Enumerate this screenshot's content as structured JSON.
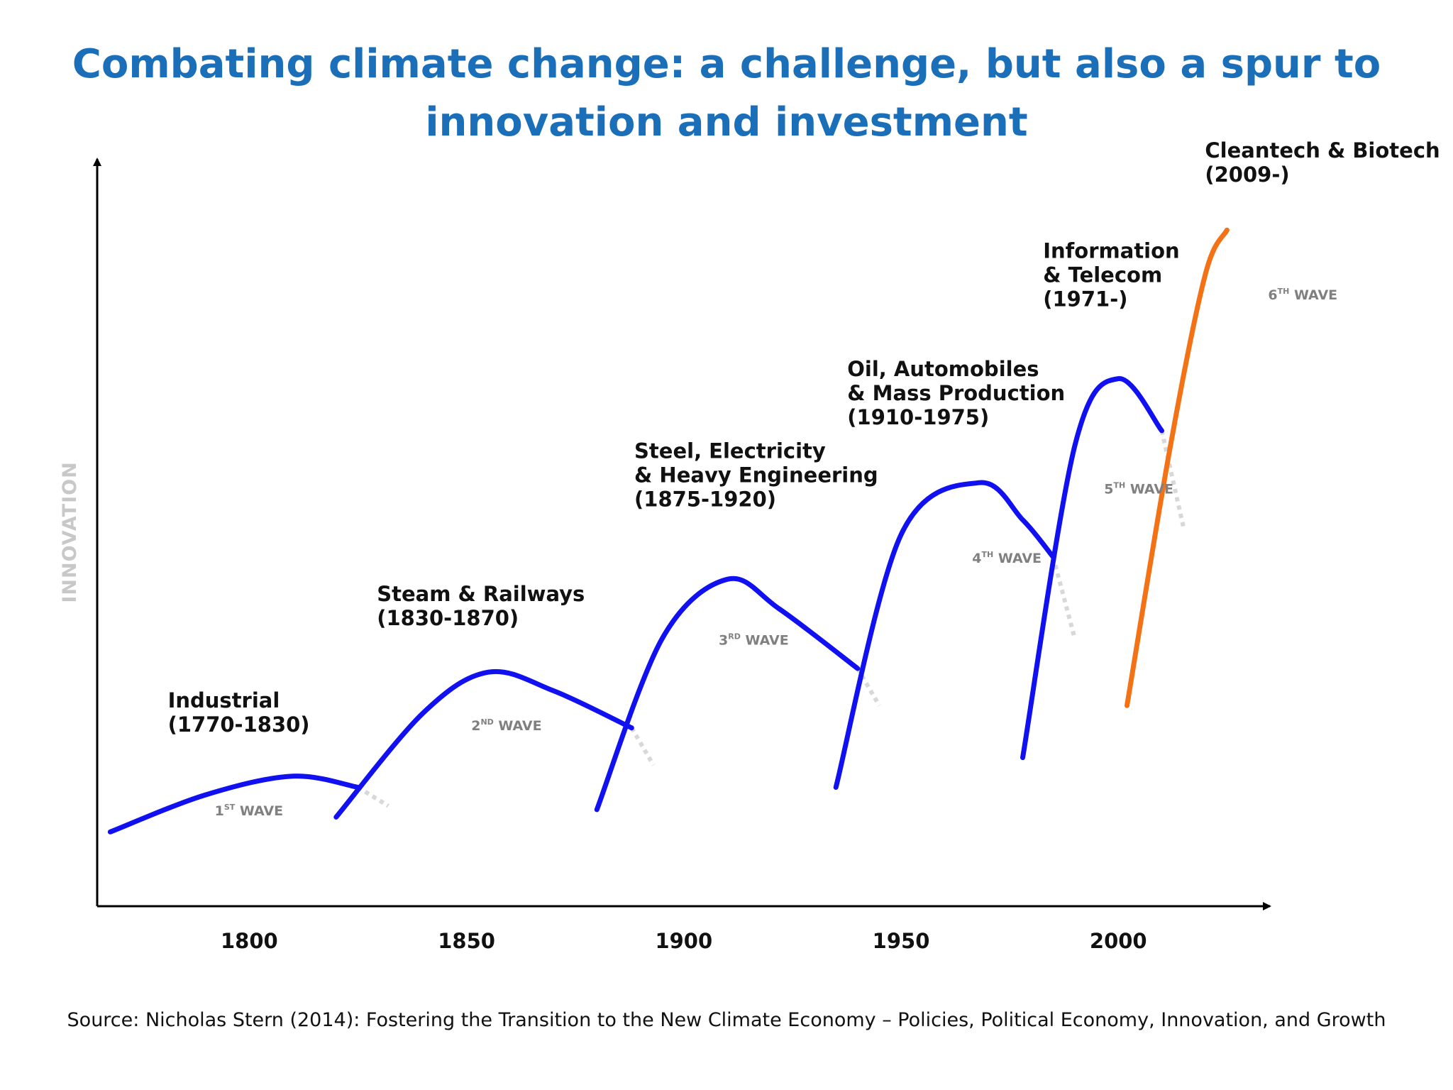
{
  "title": {
    "line1": "Combating climate change: a challenge, but also a spur to",
    "line2": "innovation and investment"
  },
  "source": "Source: Nicholas Stern (2014): Fostering the Transition to the New Climate Economy – Policies, Political Economy, Innovation, and Growth",
  "colors": {
    "title": "#1b6fb8",
    "wave": "#1010f0",
    "sixth_wave": "#f47216",
    "fade": "#d8d8d8",
    "axis": "#000000"
  },
  "chart_data": {
    "type": "line",
    "title": "",
    "ylabel": "INNOVATION",
    "xlabel": "",
    "xlim": [
      1765,
      2030
    ],
    "ylim": [
      0,
      100
    ],
    "xticks": [
      1800,
      1850,
      1900,
      1950,
      2000
    ],
    "grid": false,
    "legend": "none",
    "series": [
      {
        "name": "Industrial",
        "period": "(1770-1830)",
        "wave": "1",
        "wave_suffix": "ST",
        "color": "#1010f0",
        "points": [
          [
            1768,
            10
          ],
          [
            1790,
            15
          ],
          [
            1810,
            17.5
          ],
          [
            1825,
            16
          ]
        ],
        "fade": [
          [
            1825,
            16
          ],
          [
            1832,
            13.5
          ]
        ]
      },
      {
        "name": "Steam & Railways",
        "period": "(1830-1870)",
        "wave": "2",
        "wave_suffix": "ND",
        "color": "#1010f0",
        "points": [
          [
            1820,
            12
          ],
          [
            1840,
            26
          ],
          [
            1855,
            31.5
          ],
          [
            1870,
            29
          ],
          [
            1888,
            24
          ]
        ],
        "fade": [
          [
            1888,
            24
          ],
          [
            1893,
            19
          ]
        ]
      },
      {
        "name": "Steel, Electricity & Heavy Engineering",
        "period": "(1875-1920)",
        "wave": "3",
        "wave_suffix": "RD",
        "color": "#1010f0",
        "points": [
          [
            1880,
            13
          ],
          [
            1895,
            36
          ],
          [
            1910,
            44
          ],
          [
            1922,
            40
          ],
          [
            1940,
            32
          ]
        ],
        "fade": [
          [
            1940,
            32
          ],
          [
            1945,
            27
          ]
        ]
      },
      {
        "name": "Oil, Automobiles & Mass Production",
        "period": "(1910-1975)",
        "wave": "4",
        "wave_suffix": "TH",
        "color": "#1010f0",
        "points": [
          [
            1935,
            16
          ],
          [
            1950,
            50
          ],
          [
            1968,
            57
          ],
          [
            1978,
            52
          ],
          [
            1985,
            47
          ]
        ],
        "fade": [
          [
            1985,
            47
          ],
          [
            1990,
            36
          ]
        ]
      },
      {
        "name": "Information & Telecom",
        "period": "(1971-)",
        "wave": "5",
        "wave_suffix": "TH",
        "color": "#1010f0",
        "points": [
          [
            1978,
            20
          ],
          [
            1990,
            62
          ],
          [
            2000,
            71
          ],
          [
            2010,
            64
          ]
        ],
        "fade": [
          [
            2010,
            64
          ],
          [
            2015,
            51
          ]
        ]
      },
      {
        "name": "Cleantech & Biotech",
        "period": "(2009-)",
        "wave": "6",
        "wave_suffix": "TH",
        "color": "#f47216",
        "points": [
          [
            2002,
            27
          ],
          [
            2012,
            62
          ],
          [
            2020,
            85
          ],
          [
            2025,
            91
          ]
        ],
        "fade": []
      }
    ]
  }
}
